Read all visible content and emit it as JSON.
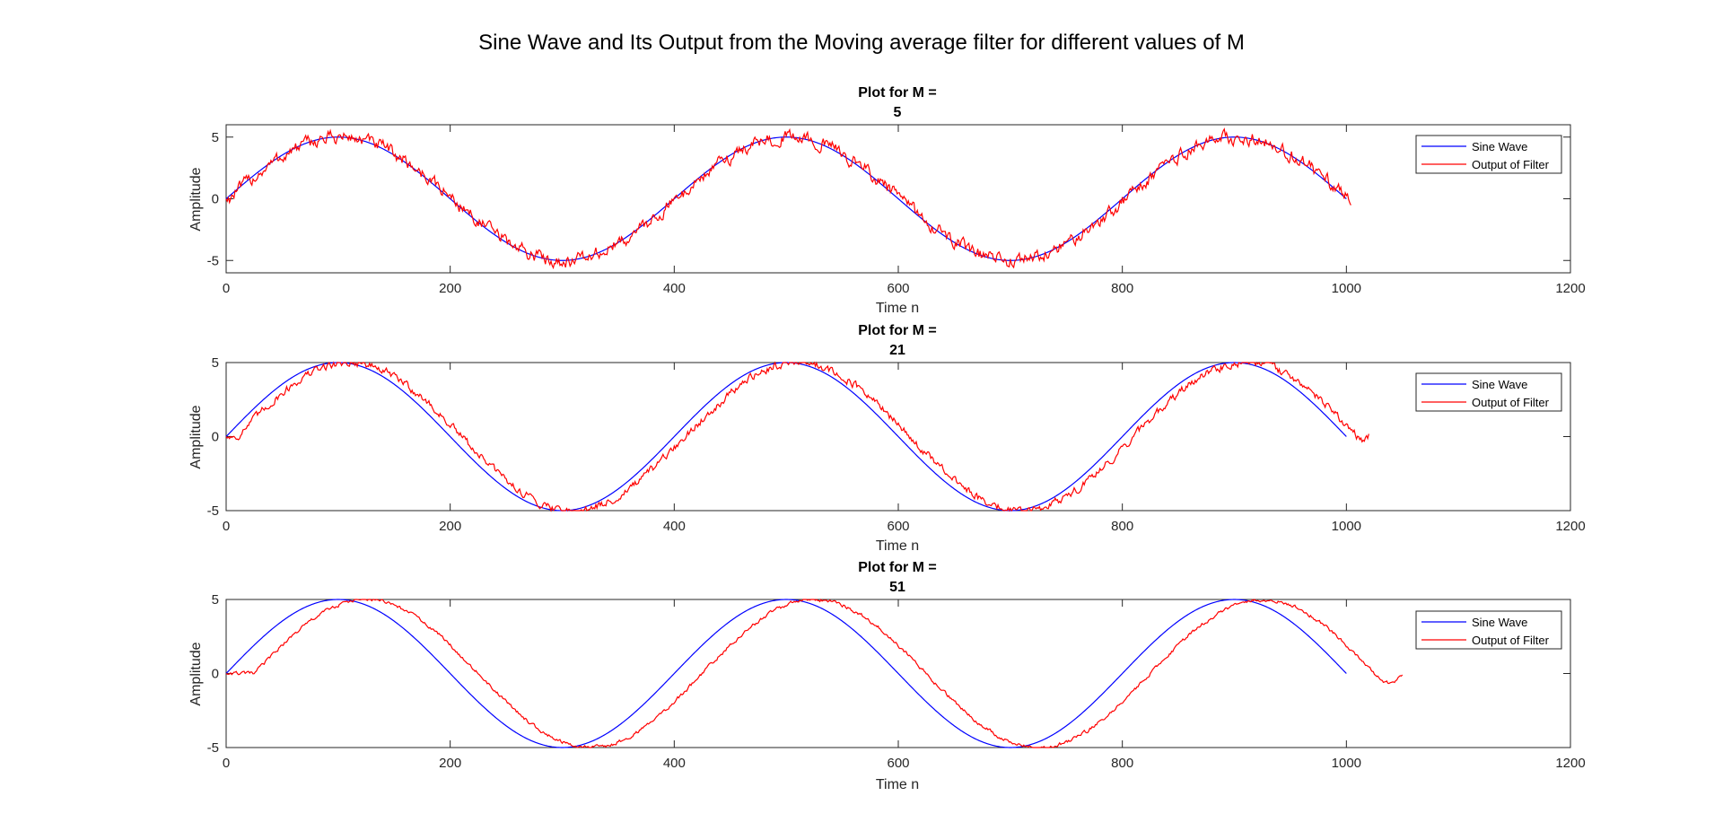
{
  "figure_title": "Sine Wave and Its Output from the Moving average filter for different values of M",
  "colors": {
    "sine": "#0000ff",
    "filter": "#ff0000",
    "axes": "#262626",
    "background": "#ffffff"
  },
  "chart_data": [
    {
      "type": "line",
      "title_line1": "Plot for M =",
      "title_line2": "5",
      "xlabel": "Time n",
      "ylabel": "Amplitude",
      "xlim": [
        0,
        1200
      ],
      "ylim": [
        -6,
        6
      ],
      "xticks": [
        0,
        200,
        400,
        600,
        800,
        1000,
        1200
      ],
      "yticks": [
        -5,
        0,
        5
      ],
      "legend_position": "top-right",
      "series": [
        {
          "name": "Sine Wave",
          "color": "#0000ff",
          "amplitude": 5,
          "period": 400,
          "delay": 0,
          "x_end": 1000,
          "noise": 0
        },
        {
          "name": "Output of Filter",
          "color": "#ff0000",
          "amplitude": 5,
          "period": 400,
          "delay": 2,
          "x_end": 1004,
          "noise": 0.45
        }
      ]
    },
    {
      "type": "line",
      "title_line1": "Plot for M =",
      "title_line2": "21",
      "xlabel": "Time n",
      "ylabel": "Amplitude",
      "xlim": [
        0,
        1200
      ],
      "ylim": [
        -5,
        5
      ],
      "xticks": [
        0,
        200,
        400,
        600,
        800,
        1000,
        1200
      ],
      "yticks": [
        -5,
        0,
        5
      ],
      "legend_position": "top-right",
      "series": [
        {
          "name": "Sine Wave",
          "color": "#0000ff",
          "amplitude": 5,
          "period": 400,
          "delay": 0,
          "x_end": 1000,
          "noise": 0
        },
        {
          "name": "Output of Filter",
          "color": "#ff0000",
          "amplitude": 5,
          "period": 400,
          "delay": 10,
          "x_end": 1020,
          "noise": 0.22
        }
      ]
    },
    {
      "type": "line",
      "title_line1": "Plot for M =",
      "title_line2": "51",
      "xlabel": "Time n",
      "ylabel": "Amplitude",
      "xlim": [
        0,
        1200
      ],
      "ylim": [
        -5,
        5
      ],
      "xticks": [
        0,
        200,
        400,
        600,
        800,
        1000,
        1200
      ],
      "yticks": [
        -5,
        0,
        5
      ],
      "legend_position": "top-right",
      "series": [
        {
          "name": "Sine Wave",
          "color": "#0000ff",
          "amplitude": 5,
          "period": 400,
          "delay": 0,
          "x_end": 1000,
          "noise": 0
        },
        {
          "name": "Output of Filter",
          "color": "#ff0000",
          "amplitude": 5,
          "period": 400,
          "delay": 25,
          "x_end": 1050,
          "noise": 0.1
        }
      ]
    }
  ]
}
